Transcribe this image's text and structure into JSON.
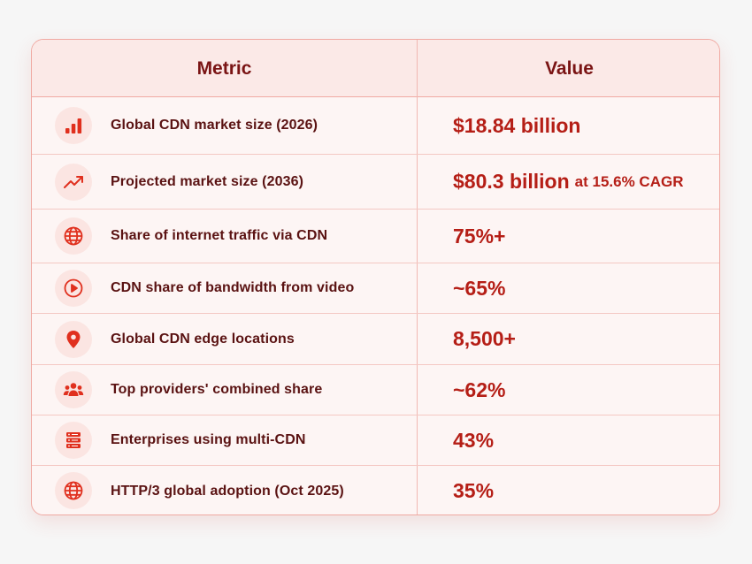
{
  "table": {
    "headers": {
      "metric": "Metric",
      "value": "Value"
    },
    "rows": [
      {
        "icon": "bar-chart-icon",
        "metric": "Global CDN market size (2026)",
        "value": "$18.84 billion",
        "suffix": ""
      },
      {
        "icon": "trending-up-icon",
        "metric": "Projected market size (2036)",
        "value": "$80.3 billion",
        "suffix": "at 15.6% CAGR"
      },
      {
        "icon": "globe-icon",
        "metric": "Share of internet traffic via CDN",
        "value": "75%+",
        "suffix": ""
      },
      {
        "icon": "play-circle-icon",
        "metric": "CDN share of bandwidth from video",
        "value": "~65%",
        "suffix": ""
      },
      {
        "icon": "map-pin-icon",
        "metric": "Global CDN edge locations",
        "value": "8,500+",
        "suffix": ""
      },
      {
        "icon": "users-group-icon",
        "metric": "Top providers' combined share",
        "value": "~62%",
        "suffix": ""
      },
      {
        "icon": "server-stack-icon",
        "metric": "Enterprises using multi-CDN",
        "value": "43%",
        "suffix": ""
      },
      {
        "icon": "globe-icon",
        "metric": "HTTP/3 global adoption (Oct 2025)",
        "value": "35%",
        "suffix": ""
      }
    ]
  },
  "colors": {
    "accent": "#e0301e",
    "value_text": "#b51e16",
    "label_text": "#5a1212",
    "header_text": "#7a1414",
    "border": "#f0a9a2",
    "card_bg": "#fdf5f4",
    "page_bg": "#f6f6f6"
  }
}
